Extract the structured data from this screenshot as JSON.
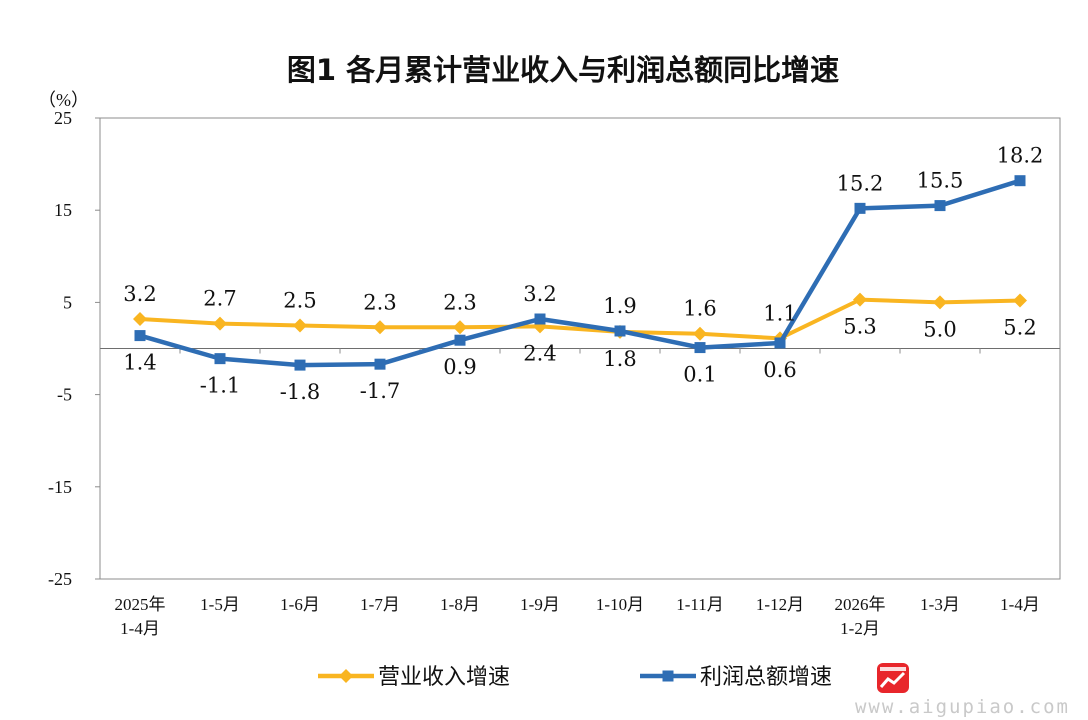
{
  "chart_data": {
    "type": "line",
    "title": "图1  各月累计营业收入与利润总额同比增速",
    "unit_label": "（%）",
    "ylim": [
      -25,
      25
    ],
    "yticks": [
      25,
      15,
      5,
      -5,
      -15,
      -25
    ],
    "grid": false,
    "legend_position": "bottom",
    "categories": [
      [
        "2025年",
        "1-4月"
      ],
      [
        "1-5月"
      ],
      [
        "1-6月"
      ],
      [
        "1-7月"
      ],
      [
        "1-8月"
      ],
      [
        "1-9月"
      ],
      [
        "1-10月"
      ],
      [
        "1-11月"
      ],
      [
        "1-12月"
      ],
      [
        "2026年",
        "1-2月"
      ],
      [
        "1-3月"
      ],
      [
        "1-4月"
      ]
    ],
    "series": [
      {
        "name": "营业收入增速",
        "color": "#F9B521",
        "marker": "diamond",
        "values": [
          3.2,
          2.7,
          2.5,
          2.3,
          2.3,
          2.4,
          1.8,
          1.6,
          1.1,
          5.3,
          5.0,
          5.2
        ],
        "labels": [
          "3.2",
          "2.7",
          "2.5",
          "2.3",
          "2.3",
          "2.4",
          "1.8",
          "1.6",
          "1.1",
          "5.3",
          "5.0",
          "5.2"
        ]
      },
      {
        "name": "利润总额增速",
        "color": "#2E6DB4",
        "marker": "square",
        "values": [
          1.4,
          -1.1,
          -1.8,
          -1.7,
          0.9,
          3.2,
          1.9,
          0.1,
          0.6,
          15.2,
          15.5,
          18.2
        ],
        "labels": [
          "1.4",
          "-1.1",
          "-1.8",
          "-1.7",
          "0.9",
          "3.2",
          "1.9",
          "0.1",
          "0.6",
          "15.2",
          "15.5",
          "18.2"
        ]
      }
    ]
  },
  "watermark": "www.aigupiao.com",
  "logo_icon": "stock-chart-logo-icon"
}
